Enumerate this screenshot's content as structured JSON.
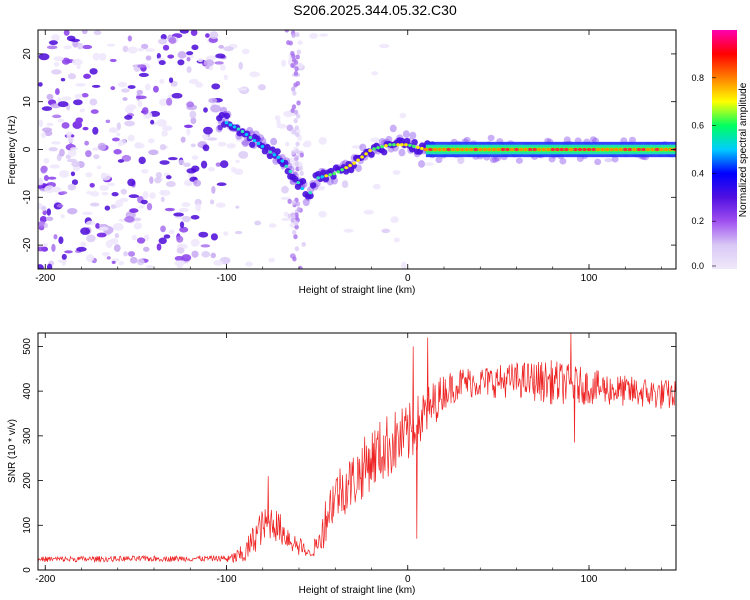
{
  "title": "S206.2025.344.05.32.C30",
  "chart_data": [
    {
      "type": "heatmap",
      "xlabel": "Height of straight line (km)",
      "ylabel": "Frequency (Hz)",
      "xlim": [
        -204,
        148
      ],
      "ylim": [
        -25,
        25
      ],
      "xticks": [
        -200,
        -100,
        0,
        100
      ],
      "yticks": [
        -20,
        -10,
        0,
        10,
        20
      ],
      "colorbar": {
        "label": "Normalized spectral amplitude",
        "range": [
          0,
          1
        ],
        "ticks": [
          "0.0",
          "0.2",
          "0.4",
          "0.6",
          "0.8"
        ],
        "colors": [
          "#f0e8fa",
          "#d8c8f5",
          "#a050f0",
          "#5010e0",
          "#0000ff",
          "#00ccff",
          "#00ff60",
          "#ffff00",
          "#ff8000",
          "#ff0000",
          "#ff00b0"
        ]
      },
      "ridge": {
        "x": [
          -102,
          -92,
          -85,
          -78,
          -70,
          -62,
          -55,
          -50,
          -40,
          -30,
          -20,
          -10,
          0,
          10,
          148
        ],
        "y": [
          6,
          4,
          2,
          0,
          -2,
          -6,
          -10,
          -6,
          -5,
          -3,
          0,
          1,
          1,
          0,
          0
        ]
      }
    },
    {
      "type": "line",
      "xlabel": "Height of straight line (km)",
      "ylabel": "SNR (10 * v/v)",
      "xlim": [
        -204,
        148
      ],
      "ylim": [
        0,
        530
      ],
      "xticks": [
        -200,
        -100,
        0,
        100
      ],
      "yticks": [
        0,
        100,
        200,
        300,
        400,
        500
      ],
      "color": "#ee2222",
      "trend": {
        "x": [
          -204,
          -100,
          -90,
          -82,
          -75,
          -65,
          -55,
          -50,
          -45,
          -40,
          -30,
          -20,
          -10,
          0,
          10,
          20,
          30,
          40,
          60,
          80,
          100,
          120,
          148
        ],
        "y": [
          20,
          22,
          35,
          90,
          110,
          70,
          30,
          40,
          120,
          170,
          200,
          250,
          280,
          300,
          350,
          400,
          420,
          420,
          425,
          420,
          410,
          400,
          390
        ]
      },
      "noise": [
        8,
        8,
        25,
        40,
        40,
        30,
        12,
        30,
        55,
        60,
        65,
        70,
        75,
        70,
        60,
        40,
        35,
        35,
        40,
        50,
        40,
        35,
        35
      ],
      "spikes": [
        {
          "x": -77,
          "y": 210
        },
        {
          "x": 3,
          "y": 500
        },
        {
          "x": 11,
          "y": 520
        },
        {
          "x": 5,
          "y": 70
        },
        {
          "x": 90,
          "y": 530
        },
        {
          "x": 92,
          "y": 285
        }
      ]
    }
  ]
}
